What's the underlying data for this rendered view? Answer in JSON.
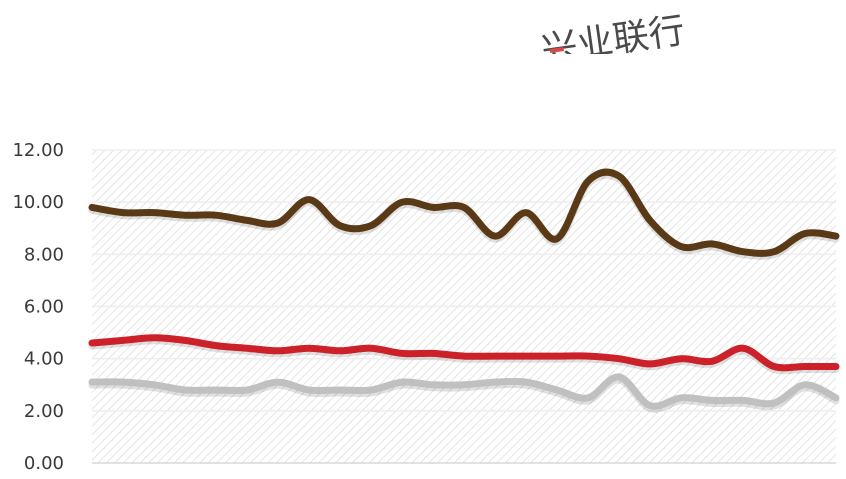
{
  "watermark": {
    "text": "兴业联行"
  },
  "chart_data": {
    "type": "line",
    "title": "",
    "xlabel": "",
    "ylabel": "",
    "ylim": [
      0,
      12
    ],
    "yticks": [
      "0.00",
      "2.00",
      "4.00",
      "6.00",
      "8.00",
      "10.00",
      "12.00"
    ],
    "grid": true,
    "legend": "none",
    "plot_background": "diagonal hatch",
    "series": [
      {
        "color": "#5a3a16",
        "values": [
          9.8,
          9.6,
          9.6,
          9.5,
          9.5,
          9.3,
          9.2,
          10.1,
          9.1,
          9.1,
          10.0,
          9.8,
          9.8,
          8.7,
          9.6,
          8.6,
          10.8,
          11.0,
          9.3,
          8.3,
          8.4,
          8.1,
          8.1,
          8.8,
          8.7
        ]
      },
      {
        "color": "#cc2128",
        "values": [
          4.6,
          4.7,
          4.8,
          4.7,
          4.5,
          4.4,
          4.3,
          4.4,
          4.3,
          4.4,
          4.2,
          4.2,
          4.1,
          4.1,
          4.1,
          4.1,
          4.1,
          4.0,
          3.8,
          4.0,
          3.9,
          4.4,
          3.7,
          3.7,
          3.7
        ]
      },
      {
        "color": "#c0c0c0",
        "values": [
          3.1,
          3.1,
          3.0,
          2.8,
          2.8,
          2.8,
          3.1,
          2.8,
          2.8,
          2.8,
          3.1,
          3.0,
          3.0,
          3.1,
          3.1,
          2.8,
          2.5,
          3.3,
          2.2,
          2.5,
          2.4,
          2.4,
          2.3,
          3.0,
          2.5
        ]
      }
    ]
  }
}
